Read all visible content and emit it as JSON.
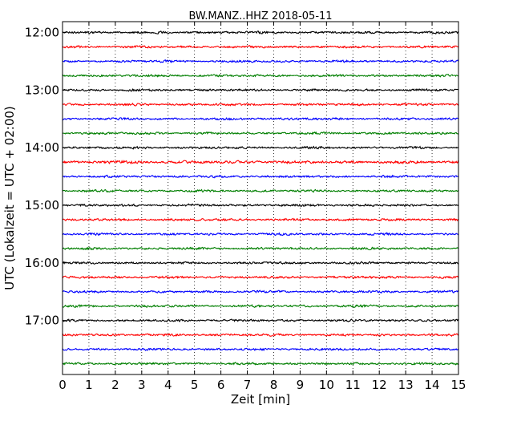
{
  "chart_data": {
    "type": "line",
    "title": "BW.MANZ..HHZ 2018-05-11",
    "xlabel": "Zeit  [min]",
    "ylabel": "UTC (Lokalzeit = UTC + 02:00)",
    "xlim": [
      0,
      15
    ],
    "x_ticks": [
      "0",
      "1",
      "2",
      "3",
      "4",
      "5",
      "6",
      "7",
      "8",
      "9",
      "10",
      "11",
      "12",
      "13",
      "14",
      "15"
    ],
    "y_ticks": [
      "12:00",
      "13:00",
      "14:00",
      "15:00",
      "16:00",
      "17:00"
    ],
    "grid": "vertical dotted",
    "trace_interval_minutes": 15,
    "trace_colors": [
      "#000000",
      "#ff0000",
      "#0000ff",
      "#007f00"
    ],
    "traces": [
      {
        "start": "12:00",
        "color": "#000000",
        "amplitude": 0.8
      },
      {
        "start": "12:15",
        "color": "#ff0000",
        "amplitude": 0.8
      },
      {
        "start": "12:30",
        "color": "#0000ff",
        "amplitude": 0.8
      },
      {
        "start": "12:45",
        "color": "#007f00",
        "amplitude": 0.8
      },
      {
        "start": "13:00",
        "color": "#000000",
        "amplitude": 0.8
      },
      {
        "start": "13:15",
        "color": "#ff0000",
        "amplitude": 0.8
      },
      {
        "start": "13:30",
        "color": "#0000ff",
        "amplitude": 0.8
      },
      {
        "start": "13:45",
        "color": "#007f00",
        "amplitude": 0.8
      },
      {
        "start": "14:00",
        "color": "#000000",
        "amplitude": 0.8
      },
      {
        "start": "14:15",
        "color": "#ff0000",
        "amplitude": 1.0
      },
      {
        "start": "14:30",
        "color": "#0000ff",
        "amplitude": 0.8
      },
      {
        "start": "14:45",
        "color": "#007f00",
        "amplitude": 0.8
      },
      {
        "start": "15:00",
        "color": "#000000",
        "amplitude": 0.8
      },
      {
        "start": "15:15",
        "color": "#ff0000",
        "amplitude": 0.8
      },
      {
        "start": "15:30",
        "color": "#0000ff",
        "amplitude": 0.8
      },
      {
        "start": "15:45",
        "color": "#007f00",
        "amplitude": 0.8
      },
      {
        "start": "16:00",
        "color": "#000000",
        "amplitude": 0.8
      },
      {
        "start": "16:15",
        "color": "#ff0000",
        "amplitude": 0.8
      },
      {
        "start": "16:30",
        "color": "#0000ff",
        "amplitude": 0.8
      },
      {
        "start": "16:45",
        "color": "#007f00",
        "amplitude": 0.8
      },
      {
        "start": "17:00",
        "color": "#000000",
        "amplitude": 0.8
      },
      {
        "start": "17:15",
        "color": "#ff0000",
        "amplitude": 0.8
      },
      {
        "start": "17:30",
        "color": "#0000ff",
        "amplitude": 0.8
      },
      {
        "start": "17:45",
        "color": "#007f00",
        "amplitude": 0.8
      }
    ]
  }
}
